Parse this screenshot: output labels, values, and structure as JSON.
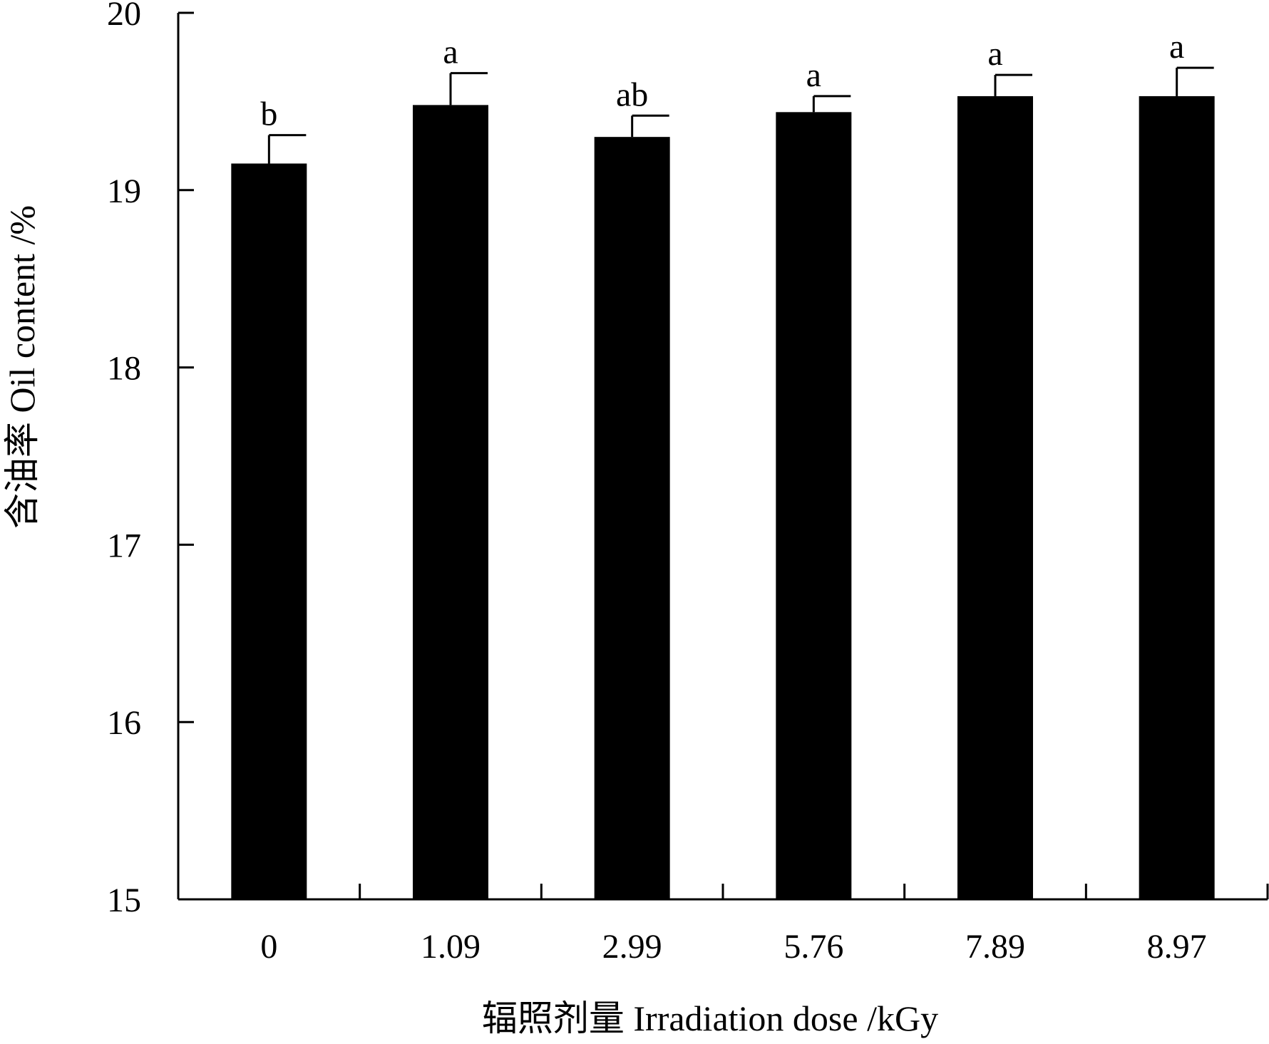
{
  "chart_data": {
    "type": "bar",
    "xlabel": "辐照剂量 Irradiation dose /kGy",
    "ylabel": "含油率 Oil content /%",
    "ylim": [
      15,
      20
    ],
    "yticks": [
      15,
      16,
      17,
      18,
      19,
      20
    ],
    "categories": [
      "0",
      "1.09",
      "2.99",
      "5.76",
      "7.89",
      "8.97"
    ],
    "values": [
      19.15,
      19.48,
      19.3,
      19.44,
      19.53,
      19.53
    ],
    "errors": [
      0.16,
      0.18,
      0.12,
      0.09,
      0.12,
      0.16
    ],
    "significance": [
      "b",
      "a",
      "ab",
      "a",
      "a",
      "a"
    ],
    "bar_color": "#000000",
    "grid": false,
    "legend": "none"
  }
}
